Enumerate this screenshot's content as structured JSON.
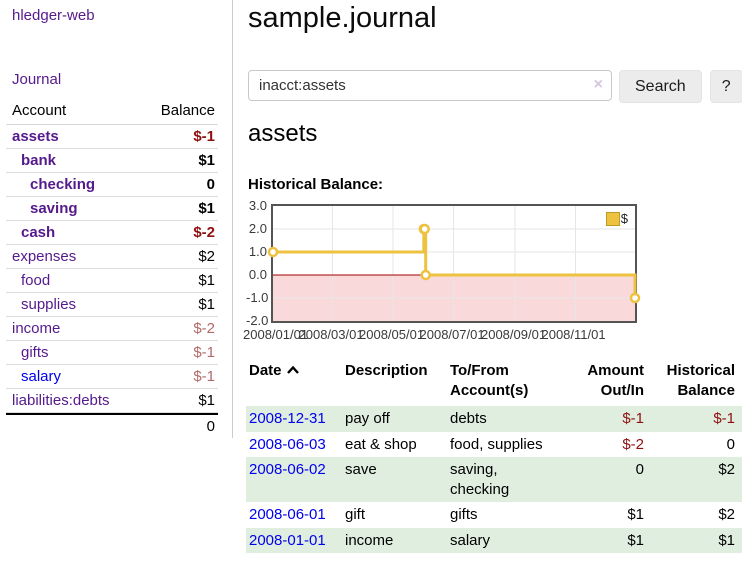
{
  "sidebar": {
    "brand": "hledger-web",
    "journal_link": "Journal",
    "accounts": {
      "col_account": "Account",
      "col_balance": "Balance",
      "rows": [
        {
          "name": "assets",
          "depth": 1,
          "bold": true,
          "balance": "$-1",
          "neg": "strong"
        },
        {
          "name": "bank",
          "depth": 2,
          "bold": true,
          "balance": "$1"
        },
        {
          "name": "checking",
          "depth": 3,
          "bold": true,
          "balance": "0"
        },
        {
          "name": "saving",
          "depth": 3,
          "bold": true,
          "balance": "$1"
        },
        {
          "name": "cash",
          "depth": 2,
          "bold": true,
          "balance": "$-2",
          "neg": "strong"
        },
        {
          "name": "expenses",
          "depth": 1,
          "bold": false,
          "balance": "$2"
        },
        {
          "name": "food",
          "depth": 2,
          "bold": false,
          "balance": "$1"
        },
        {
          "name": "supplies",
          "depth": 2,
          "bold": false,
          "balance": "$1"
        },
        {
          "name": "income",
          "depth": 1,
          "bold": false,
          "balance": "$-2",
          "neg": "muted"
        },
        {
          "name": "gifts",
          "depth": 2,
          "bold": false,
          "balance": "$-1",
          "neg": "muted"
        },
        {
          "name": "salary",
          "depth": 2,
          "bold": false,
          "balance": "$-1",
          "neg": "muted",
          "link_color": "blue"
        },
        {
          "name": "liabilities:debts",
          "depth": 1,
          "bold": false,
          "balance": "$1"
        }
      ],
      "total": "0"
    }
  },
  "header": {
    "title": "sample.journal"
  },
  "search": {
    "value": "inacct:assets",
    "clear_icon": "×",
    "search_button": "Search",
    "help_button": "?"
  },
  "account_view": {
    "heading": "assets"
  },
  "chart_data": {
    "type": "line",
    "step": true,
    "title": "Historical Balance:",
    "series": [
      {
        "name": "$",
        "color": "#edc240",
        "points": [
          [
            "2008-01-01",
            1
          ],
          [
            "2008-06-01",
            2
          ],
          [
            "2008-06-02",
            2
          ],
          [
            "2008-06-03",
            0
          ],
          [
            "2008-12-31",
            -1
          ]
        ]
      }
    ],
    "xlim": [
      "2008-01-01",
      "2008-12-31"
    ],
    "ylim": [
      -2,
      3
    ],
    "yticks": [
      3,
      2,
      1,
      0,
      -1,
      -2
    ],
    "ytick_labels": [
      "3.0",
      "2.0",
      "1.0",
      "0.0",
      "-1.0",
      "-2.0"
    ],
    "xticks": [
      {
        "date": "2008-01-01",
        "label": "2008/01/01",
        "grid": false
      },
      {
        "date": "2008-03-01",
        "label": "2008/03/01",
        "grid": true
      },
      {
        "date": "2008-05-01",
        "label": "2008/05/01",
        "grid": true
      },
      {
        "date": "2008-07-01",
        "label": "2008/07/01",
        "grid": true
      },
      {
        "date": "2008-09-01",
        "label": "2008/09/01",
        "grid": true
      },
      {
        "date": "2008-11-01",
        "label": "2008/11/01",
        "grid": true
      }
    ],
    "legend": {
      "label": "$",
      "position": "top-right"
    },
    "grid_color": "#e6e6e6",
    "negative_region_color": "#f9d9d9",
    "zero_line_color": "#a00000"
  },
  "register": {
    "headers": [
      {
        "label": "Date",
        "sort": "asc",
        "align": "left"
      },
      {
        "label": "Description",
        "align": "left"
      },
      {
        "label": "To/From\nAccount(s)",
        "align": "left"
      },
      {
        "label": "Amount\nOut/In",
        "align": "right"
      },
      {
        "label": "Historical\nBalance",
        "align": "right"
      }
    ],
    "rows": [
      {
        "date": "2008-12-31",
        "description": "pay off",
        "accounts": "debts",
        "amount": "$-1",
        "amount_neg": true,
        "balance": "$-1",
        "balance_neg": true
      },
      {
        "date": "2008-06-03",
        "description": "eat & shop",
        "accounts": "food, supplies",
        "amount": "$-2",
        "amount_neg": true,
        "balance": "0",
        "balance_neg": false
      },
      {
        "date": "2008-06-02",
        "description": "save",
        "accounts": "saving,\nchecking",
        "amount": "0",
        "amount_neg": false,
        "balance": "$2",
        "balance_neg": false
      },
      {
        "date": "2008-06-01",
        "description": "gift",
        "accounts": "gifts",
        "amount": "$1",
        "amount_neg": false,
        "balance": "$2",
        "balance_neg": false
      },
      {
        "date": "2008-01-01",
        "description": "income",
        "accounts": "salary",
        "amount": "$1",
        "amount_neg": false,
        "balance": "$1",
        "balance_neg": false
      }
    ]
  },
  "colors": {
    "link_purple": "#551a8b",
    "link_blue": "#0000ee",
    "negative_strong": "#8f1010",
    "negative_muted": "#b36a6a",
    "row_green": "#e0eee0",
    "chart_line": "#edc240",
    "sidebar_divider": "#cccccc"
  }
}
